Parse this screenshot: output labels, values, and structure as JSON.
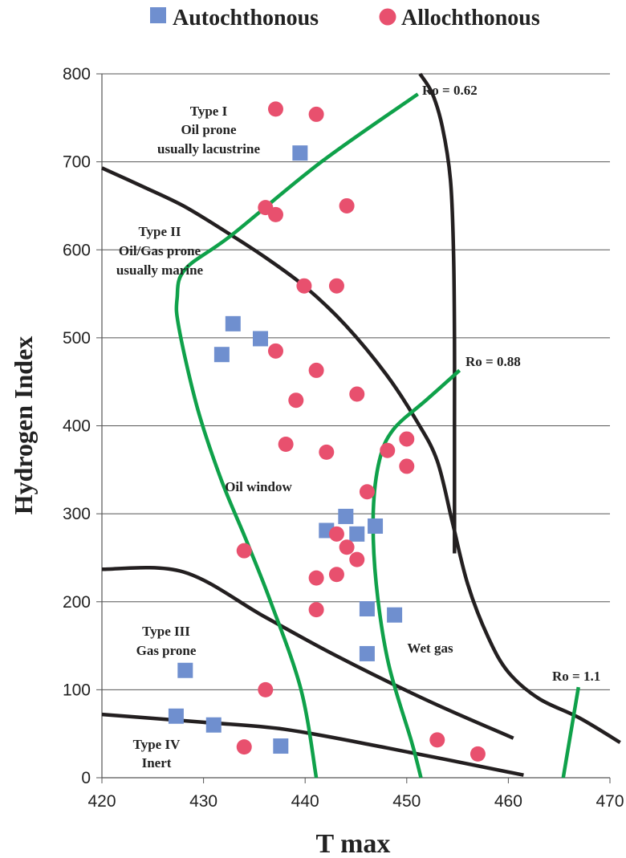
{
  "chart_data": {
    "type": "scatter",
    "xlabel": "T max",
    "ylabel": "Hydrogen Index",
    "xlim": [
      420,
      470
    ],
    "ylim": [
      0,
      800
    ],
    "x_ticks": [
      "420",
      "430",
      "440",
      "450",
      "460",
      "470"
    ],
    "y_ticks": [
      "0",
      "100",
      "200",
      "300",
      "400",
      "500",
      "600",
      "700",
      "800"
    ],
    "grid": "horizontal",
    "legend_position": "top",
    "series": [
      {
        "name": "Autochthonous",
        "marker": "square",
        "color": "#6f8fcf",
        "points": [
          [
            439.5,
            710
          ],
          [
            432.9,
            516
          ],
          [
            435.6,
            499
          ],
          [
            431.8,
            481
          ],
          [
            444.0,
            297
          ],
          [
            442.1,
            281
          ],
          [
            446.9,
            286
          ],
          [
            445.1,
            277
          ],
          [
            446.1,
            192
          ],
          [
            448.8,
            185
          ],
          [
            446.1,
            141
          ],
          [
            428.2,
            122
          ],
          [
            427.3,
            70
          ],
          [
            431.0,
            60
          ],
          [
            437.6,
            36
          ]
        ]
      },
      {
        "name": "Allochthonous",
        "marker": "circle",
        "color": "#e8506e",
        "points": [
          [
            437.1,
            760
          ],
          [
            441.1,
            754
          ],
          [
            436.1,
            648
          ],
          [
            437.1,
            640
          ],
          [
            444.1,
            650
          ],
          [
            439.9,
            559
          ],
          [
            443.1,
            559
          ],
          [
            437.1,
            485
          ],
          [
            441.1,
            463
          ],
          [
            445.1,
            436
          ],
          [
            439.1,
            429
          ],
          [
            438.1,
            379
          ],
          [
            442.1,
            370
          ],
          [
            448.1,
            372
          ],
          [
            450.0,
            385
          ],
          [
            450.0,
            354
          ],
          [
            446.1,
            325
          ],
          [
            443.1,
            277
          ],
          [
            444.1,
            262
          ],
          [
            445.1,
            248
          ],
          [
            434.0,
            258
          ],
          [
            441.1,
            227
          ],
          [
            443.1,
            231
          ],
          [
            441.1,
            191
          ],
          [
            436.1,
            100
          ],
          [
            453.0,
            43
          ],
          [
            457.0,
            27
          ],
          [
            434.0,
            35
          ]
        ]
      }
    ],
    "boundary_lines": [
      {
        "color": "#231f20",
        "points": [
          [
            420,
            693
          ],
          [
            424,
            672
          ],
          [
            428,
            650
          ],
          [
            432,
            622
          ],
          [
            436,
            592
          ],
          [
            440,
            558
          ],
          [
            444,
            514
          ],
          [
            448,
            458
          ],
          [
            451,
            405
          ],
          [
            453,
            360
          ],
          [
            454.5,
            290
          ],
          [
            456,
            220
          ],
          [
            458,
            160
          ],
          [
            460,
            120
          ],
          [
            463,
            90
          ],
          [
            467,
            68
          ],
          [
            471,
            40
          ]
        ]
      },
      {
        "color": "#231f20",
        "points": [
          [
            451.3,
            800
          ],
          [
            452.5,
            778
          ],
          [
            453.5,
            740
          ],
          [
            454.3,
            680
          ],
          [
            454.6,
            600
          ],
          [
            454.7,
            500
          ],
          [
            454.7,
            400
          ],
          [
            454.7,
            255
          ]
        ]
      },
      {
        "color": "#231f20",
        "points": [
          [
            420,
            237
          ],
          [
            428,
            234
          ],
          [
            436,
            183
          ],
          [
            443,
            139
          ],
          [
            452,
            88
          ],
          [
            460.5,
            45
          ]
        ]
      },
      {
        "color": "#231f20",
        "points": [
          [
            420,
            72
          ],
          [
            430,
            63
          ],
          [
            438,
            55
          ],
          [
            448,
            34
          ],
          [
            461.5,
            3
          ]
        ]
      }
    ],
    "ro_lines": [
      {
        "color": "#0fa14a",
        "points": [
          [
            451.1,
            777
          ],
          [
            441.6,
            700
          ],
          [
            432.8,
            617
          ],
          [
            428.2,
            578
          ],
          [
            427.4,
            545
          ],
          [
            427.6,
            510
          ],
          [
            429.4,
            420
          ],
          [
            431.7,
            340
          ],
          [
            434.2,
            270
          ],
          [
            436.6,
            200
          ],
          [
            439.6,
            100
          ],
          [
            441.1,
            0
          ]
        ]
      },
      {
        "color": "#0fa14a",
        "points": [
          [
            455.2,
            463
          ],
          [
            452.0,
            430
          ],
          [
            448.7,
            396
          ],
          [
            447.3,
            360
          ],
          [
            446.7,
            300
          ],
          [
            447.0,
            220
          ],
          [
            448.2,
            130
          ],
          [
            450.5,
            40
          ],
          [
            451.4,
            0
          ]
        ]
      },
      {
        "color": "#0fa14a",
        "points": [
          [
            466.9,
            103
          ],
          [
            465.4,
            0
          ]
        ]
      }
    ],
    "annotations": {
      "ro_062": "Ro = 0.62",
      "ro_088": "Ro = 0.88",
      "ro_11": "Ro = 1.1",
      "type1": [
        "Type I",
        "Oil prone",
        "usually lacustrine"
      ],
      "type2": [
        "Type II",
        "Oil/Gas prone",
        "usually marine"
      ],
      "type3": [
        "Type III",
        "Gas prone"
      ],
      "type4": [
        "Type IV",
        "Inert"
      ],
      "oil_window": "Oil window",
      "wet_gas": "Wet gas"
    }
  }
}
